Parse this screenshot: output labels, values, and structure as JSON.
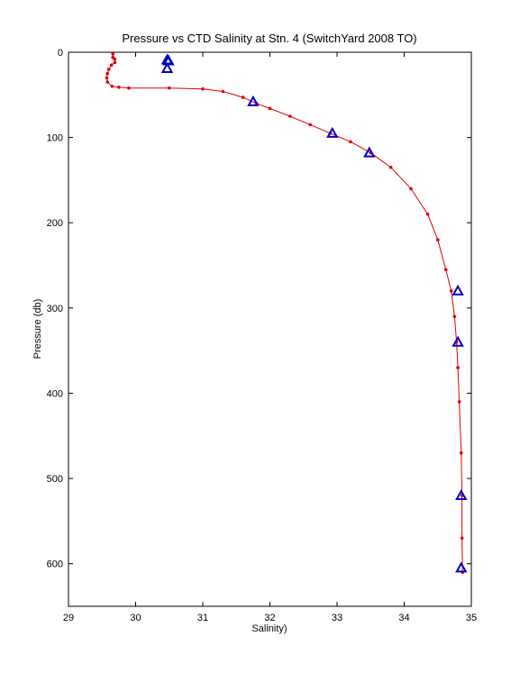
{
  "chart_data": {
    "type": "scatter",
    "title": "Pressure vs CTD Salinity at Stn. 4 (SwitchYard 2008 TO)",
    "xlabel": "Salinity)",
    "ylabel": "Pressure (db)",
    "xlim": [
      29,
      35
    ],
    "ylim": [
      0,
      650
    ],
    "y_reversed": true,
    "xticks": [
      "29",
      "30",
      "31",
      "32",
      "33",
      "34",
      "35"
    ],
    "yticks": [
      "0",
      "100",
      "200",
      "300",
      "400",
      "500",
      "600"
    ],
    "grid": false,
    "series": [
      {
        "marker": "dot-line",
        "color": "#e00000",
        "points": [
          [
            29.66,
            2
          ],
          [
            29.66,
            6
          ],
          [
            29.69,
            8
          ],
          [
            29.69,
            12
          ],
          [
            29.64,
            15
          ],
          [
            29.6,
            20
          ],
          [
            29.58,
            25
          ],
          [
            29.57,
            30
          ],
          [
            29.58,
            35
          ],
          [
            29.65,
            40
          ],
          [
            29.75,
            41
          ],
          [
            29.9,
            42
          ],
          [
            30.5,
            42
          ],
          [
            31.0,
            43
          ],
          [
            31.3,
            46
          ],
          [
            31.6,
            53
          ],
          [
            31.8,
            60
          ],
          [
            32.0,
            66
          ],
          [
            32.3,
            75
          ],
          [
            32.6,
            85
          ],
          [
            32.9,
            95
          ],
          [
            33.2,
            105
          ],
          [
            33.5,
            118
          ],
          [
            33.8,
            135
          ],
          [
            34.1,
            160
          ],
          [
            34.35,
            190
          ],
          [
            34.5,
            220
          ],
          [
            34.62,
            255
          ],
          [
            34.7,
            280
          ],
          [
            34.75,
            310
          ],
          [
            34.78,
            340
          ],
          [
            34.8,
            370
          ],
          [
            34.82,
            410
          ],
          [
            34.85,
            470
          ],
          [
            34.86,
            520
          ],
          [
            34.86,
            570
          ],
          [
            34.87,
            610
          ]
        ]
      },
      {
        "marker": "triangle",
        "color": "#0000c8",
        "points": [
          [
            30.47,
            9
          ],
          [
            30.49,
            10
          ],
          [
            30.47,
            19
          ],
          [
            31.75,
            58
          ],
          [
            32.93,
            95
          ],
          [
            33.48,
            118
          ],
          [
            34.8,
            280
          ],
          [
            34.8,
            340
          ],
          [
            34.85,
            520
          ],
          [
            34.85,
            605
          ]
        ]
      }
    ]
  }
}
